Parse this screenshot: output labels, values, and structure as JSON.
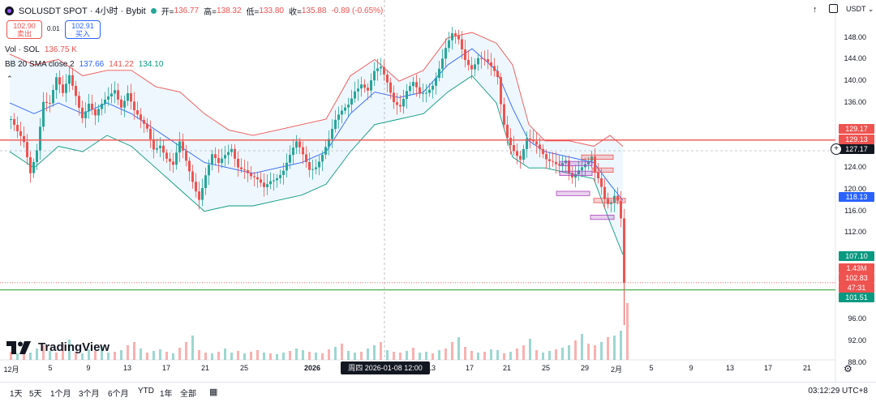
{
  "header": {
    "symbol_title": "SOLUSDT SPOT · 4小时 · Bybit",
    "open_label": "开=",
    "open_value": "136.77",
    "high_label": "高=",
    "high_value": "138.32",
    "low_label": "低=",
    "low_value": "133.80",
    "close_label": "收=",
    "close_value": "135.88",
    "change": "-0.89 (-0.65%)",
    "currency": "USDT"
  },
  "trade": {
    "sell_price": "102.90",
    "sell_label": "卖出",
    "spread": "0.01",
    "buy_price": "102.91",
    "buy_label": "买入"
  },
  "indicators": {
    "vol_label": "Vol · SOL",
    "vol_value": "136.75 K",
    "bb_label": "BB 20 SMA close 2",
    "bb_basis": "137.66",
    "bb_upper": "141.22",
    "bb_lower": "134.10"
  },
  "price_axis": {
    "ticks": [
      "148.00",
      "144.00",
      "140.00",
      "136.00",
      "124.00",
      "120.00",
      "116.00",
      "112.00",
      "96.00",
      "92.00",
      "88.00"
    ],
    "tags": [
      {
        "value": "129.17",
        "color": "#ef5350"
      },
      {
        "value": "129.13",
        "color": "#ef5350"
      },
      {
        "value": "127.17",
        "color": "#131722"
      },
      {
        "value": "118.13",
        "color": "#2962ff"
      },
      {
        "value": "107.10",
        "color": "#089981"
      },
      {
        "value": "1.43M",
        "color": "#ef5350"
      },
      {
        "value": "102.83",
        "color": "#ef5350"
      },
      {
        "value": "47:31",
        "color": "#ef5350"
      },
      {
        "value": "101.51",
        "color": "#089981"
      }
    ]
  },
  "time_axis": {
    "labels": [
      "12月",
      "5",
      "9",
      "13",
      "17",
      "21",
      "25",
      "2026",
      "5",
      "9",
      "13",
      "17",
      "21",
      "25",
      "29",
      "2月",
      "5",
      "9",
      "13",
      "17",
      "21"
    ],
    "crosshair_label": "周四 2026-01-08   12:00"
  },
  "bottom_bar": {
    "ranges": [
      "1天",
      "5天",
      "1个月",
      "3个月",
      "6个月",
      "YTD",
      "1年",
      "全部"
    ],
    "clock": "03:12:29 UTC+8"
  },
  "branding": {
    "name": "TradingView"
  },
  "chart_data": {
    "type": "candlestick",
    "symbol": "SOLUSDT",
    "timeframe": "4h",
    "close_path": [
      [
        0,
        133
      ],
      [
        8,
        130
      ],
      [
        16,
        128
      ],
      [
        24,
        123
      ],
      [
        32,
        128
      ],
      [
        40,
        137
      ],
      [
        48,
        136
      ],
      [
        56,
        140
      ],
      [
        64,
        137
      ],
      [
        72,
        141
      ],
      [
        80,
        138
      ],
      [
        88,
        134
      ],
      [
        96,
        136
      ],
      [
        104,
        133
      ],
      [
        112,
        135
      ],
      [
        120,
        137
      ],
      [
        128,
        139
      ],
      [
        136,
        136
      ],
      [
        144,
        138
      ],
      [
        152,
        134
      ],
      [
        160,
        132
      ],
      [
        168,
        131
      ],
      [
        176,
        128
      ],
      [
        184,
        129
      ],
      [
        192,
        126
      ],
      [
        200,
        124
      ],
      [
        208,
        128
      ],
      [
        216,
        125
      ],
      [
        224,
        122
      ],
      [
        232,
        119
      ],
      [
        240,
        123
      ],
      [
        248,
        126
      ],
      [
        256,
        124
      ],
      [
        264,
        126
      ],
      [
        272,
        128
      ],
      [
        280,
        125
      ],
      [
        288,
        124
      ],
      [
        296,
        122
      ],
      [
        304,
        121
      ],
      [
        312,
        120
      ],
      [
        320,
        122
      ],
      [
        328,
        123
      ],
      [
        336,
        124
      ],
      [
        344,
        126
      ],
      [
        352,
        128
      ],
      [
        360,
        126
      ],
      [
        368,
        124
      ],
      [
        376,
        125
      ],
      [
        384,
        127
      ],
      [
        392,
        129
      ],
      [
        400,
        132
      ],
      [
        408,
        134
      ],
      [
        416,
        136
      ],
      [
        424,
        139
      ],
      [
        432,
        140
      ],
      [
        440,
        138
      ],
      [
        448,
        141
      ],
      [
        456,
        142
      ],
      [
        464,
        140
      ],
      [
        472,
        137
      ],
      [
        480,
        136
      ],
      [
        488,
        138
      ],
      [
        496,
        139
      ],
      [
        504,
        137
      ],
      [
        512,
        138
      ],
      [
        520,
        140
      ],
      [
        528,
        143
      ],
      [
        536,
        146
      ],
      [
        544,
        148
      ],
      [
        552,
        147
      ],
      [
        560,
        144
      ],
      [
        568,
        143
      ],
      [
        576,
        145
      ],
      [
        584,
        144
      ],
      [
        592,
        142
      ],
      [
        600,
        140
      ],
      [
        606,
        133
      ],
      [
        612,
        130
      ],
      [
        620,
        128
      ],
      [
        628,
        126
      ],
      [
        636,
        129
      ],
      [
        644,
        128
      ],
      [
        652,
        127
      ],
      [
        660,
        126
      ],
      [
        668,
        126
      ],
      [
        676,
        125
      ],
      [
        684,
        125
      ],
      [
        690,
        121
      ],
      [
        696,
        122
      ],
      [
        704,
        124
      ],
      [
        712,
        126
      ],
      [
        716,
        127
      ],
      [
        720,
        124
      ],
      [
        726,
        122
      ],
      [
        732,
        118
      ],
      [
        738,
        116
      ],
      [
        744,
        118
      ],
      [
        750,
        117
      ],
      [
        754,
        112
      ],
      [
        756,
        104
      ],
      [
        758,
        102.83
      ]
    ],
    "bollinger_upper": [
      [
        0,
        145
      ],
      [
        30,
        143
      ],
      [
        60,
        144
      ],
      [
        90,
        141
      ],
      [
        120,
        142
      ],
      [
        150,
        142
      ],
      [
        180,
        139
      ],
      [
        210,
        138
      ],
      [
        240,
        134
      ],
      [
        270,
        131
      ],
      [
        300,
        130
      ],
      [
        330,
        131
      ],
      [
        360,
        132
      ],
      [
        390,
        133
      ],
      [
        420,
        141
      ],
      [
        450,
        144
      ],
      [
        480,
        140
      ],
      [
        510,
        142
      ],
      [
        540,
        148
      ],
      [
        570,
        149
      ],
      [
        600,
        147
      ],
      [
        620,
        143
      ],
      [
        640,
        132
      ],
      [
        660,
        129
      ],
      [
        690,
        129
      ],
      [
        720,
        128
      ],
      [
        740,
        130
      ],
      [
        756,
        128
      ]
    ],
    "bollinger_basis": [
      [
        0,
        136
      ],
      [
        30,
        134
      ],
      [
        60,
        136
      ],
      [
        90,
        134
      ],
      [
        120,
        136
      ],
      [
        150,
        134
      ],
      [
        180,
        131
      ],
      [
        210,
        128
      ],
      [
        240,
        125
      ],
      [
        270,
        124
      ],
      [
        300,
        123
      ],
      [
        330,
        124
      ],
      [
        360,
        125
      ],
      [
        390,
        127
      ],
      [
        420,
        134
      ],
      [
        450,
        138
      ],
      [
        480,
        137
      ],
      [
        510,
        138
      ],
      [
        540,
        143
      ],
      [
        570,
        146
      ],
      [
        600,
        142
      ],
      [
        620,
        135
      ],
      [
        640,
        129
      ],
      [
        660,
        127
      ],
      [
        690,
        126
      ],
      [
        720,
        125
      ],
      [
        740,
        121
      ],
      [
        756,
        118
      ]
    ],
    "bollinger_lower": [
      [
        0,
        127
      ],
      [
        30,
        124
      ],
      [
        60,
        128
      ],
      [
        90,
        127
      ],
      [
        120,
        130
      ],
      [
        150,
        128
      ],
      [
        180,
        124
      ],
      [
        210,
        120
      ],
      [
        240,
        116
      ],
      [
        270,
        117
      ],
      [
        300,
        117
      ],
      [
        330,
        118
      ],
      [
        360,
        119
      ],
      [
        390,
        121
      ],
      [
        420,
        127
      ],
      [
        450,
        132
      ],
      [
        480,
        133
      ],
      [
        510,
        134
      ],
      [
        540,
        138
      ],
      [
        570,
        141
      ],
      [
        600,
        136
      ],
      [
        620,
        126
      ],
      [
        640,
        124
      ],
      [
        660,
        124
      ],
      [
        690,
        123
      ],
      [
        720,
        122
      ],
      [
        740,
        114
      ],
      [
        756,
        108
      ]
    ],
    "horizontal_lines": [
      {
        "price": 129.15,
        "color": "#ef5350"
      },
      {
        "price": 101.51,
        "color": "#4caf50"
      }
    ],
    "boxes": [
      {
        "p1": 126.4,
        "p2": 125.6,
        "color": "#ef5350"
      },
      {
        "p1": 125.2,
        "p2": 124.4,
        "color": "#ab47bc"
      },
      {
        "p1": 124.0,
        "p2": 123.2,
        "color": "#ef5350"
      },
      {
        "p1": 123.4,
        "p2": 122.6,
        "color": "#ab47bc"
      },
      {
        "p1": 119.7,
        "p2": 118.9,
        "color": "#ab47bc"
      },
      {
        "p1": 118.4,
        "p2": 117.6,
        "color": "#ef5350"
      },
      {
        "p1": 115.3,
        "p2": 114.5,
        "color": "#ab47bc"
      }
    ],
    "volume_heights": [
      10,
      8,
      12,
      9,
      14,
      18,
      11,
      9,
      20,
      25,
      10,
      8,
      13,
      11,
      16,
      9,
      10,
      12,
      18,
      22,
      14,
      9,
      11,
      13,
      10,
      8,
      15,
      22,
      30,
      12,
      9,
      8,
      10,
      14,
      9,
      11,
      8,
      10,
      12,
      9,
      8,
      7,
      9,
      11,
      14,
      12,
      10,
      9,
      8,
      13,
      16,
      20,
      11,
      9,
      10,
      14,
      18,
      22,
      12,
      10,
      9,
      11,
      15,
      9,
      10,
      8,
      12,
      14,
      22,
      28,
      16,
      11,
      9,
      10,
      13,
      12,
      8,
      10,
      14,
      18,
      26,
      12,
      9,
      11,
      13,
      15,
      18,
      24,
      32,
      20,
      18,
      22,
      28,
      30,
      36,
      70
    ]
  }
}
